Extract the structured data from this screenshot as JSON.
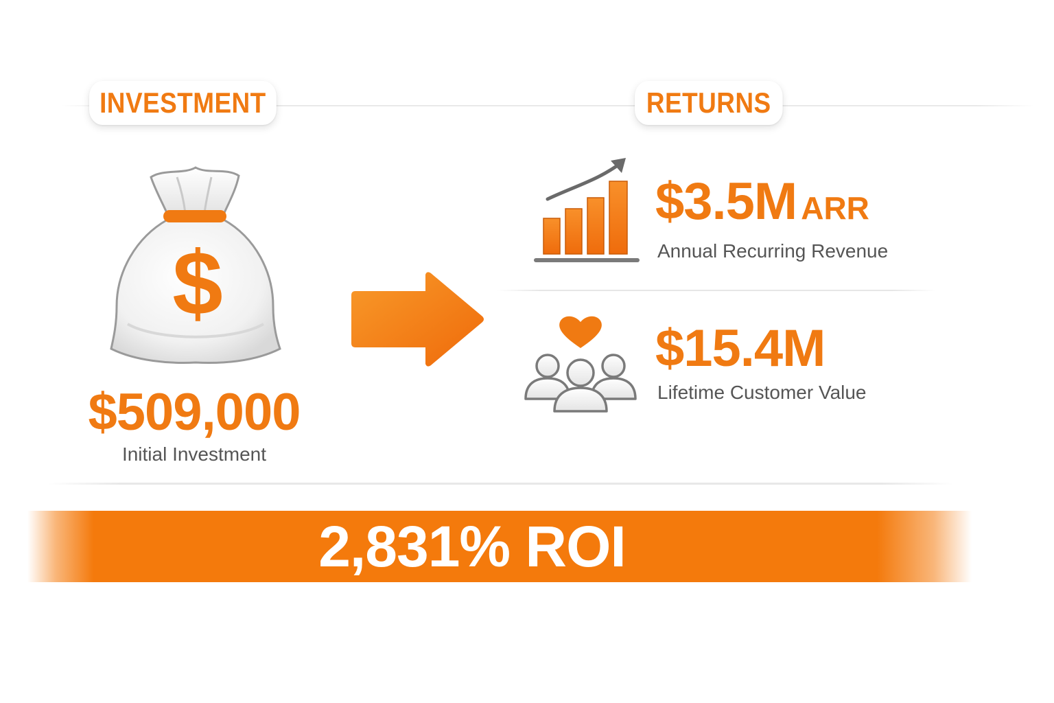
{
  "investment": {
    "heading": "INVESTMENT",
    "amount": "$509,000",
    "label": "Initial Investment",
    "icon": "money-bag-icon"
  },
  "returns": {
    "heading": "RETURNS",
    "arr": {
      "amount": "$3.5M",
      "suffix": "ARR",
      "label": "Annual Recurring Revenue",
      "icon": "growth-bar-chart-icon"
    },
    "ltv": {
      "amount": "$15.4M",
      "label": "Lifetime Customer Value",
      "icon": "customers-heart-icon"
    }
  },
  "roi": {
    "text": "2,831% ROI"
  },
  "colors": {
    "accent": "#f07a12",
    "banner": "#f47a0c",
    "text_gray": "#555555"
  }
}
